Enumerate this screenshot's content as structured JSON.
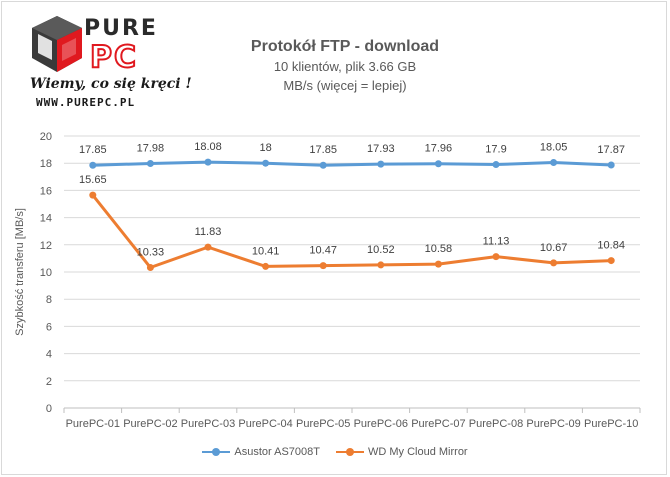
{
  "logo": {
    "word_top": "PURE",
    "word_bottom": "PC",
    "tagline": "Wiemy, co się kręci !",
    "url": "WWW.PUREPC.PL"
  },
  "chart_data": {
    "type": "line",
    "title": "Protokół FTP - download",
    "subtitle": "10 klientów, plik 3.66 GB",
    "subtitle2": "MB/s (więcej = lepiej)",
    "xlabel": "",
    "ylabel": "Szybkość transferu [MB/s]",
    "ylim": [
      0,
      20
    ],
    "ytick_step": 2,
    "grid": true,
    "legend_position": "bottom",
    "categories": [
      "PurePC-01",
      "PurePC-02",
      "PurePC-03",
      "PurePC-04",
      "PurePC-05",
      "PurePC-06",
      "PurePC-07",
      "PurePC-08",
      "PurePC-09",
      "PurePC-10"
    ],
    "series": [
      {
        "name": "Asustor AS7008T",
        "color": "#5b9bd5",
        "values": [
          17.85,
          17.98,
          18.08,
          18,
          17.85,
          17.93,
          17.96,
          17.9,
          18.05,
          17.87
        ]
      },
      {
        "name": "WD My Cloud Mirror",
        "color": "#ed7d31",
        "values": [
          15.65,
          10.33,
          11.83,
          10.41,
          10.47,
          10.52,
          10.58,
          11.13,
          10.67,
          10.84
        ]
      }
    ]
  }
}
